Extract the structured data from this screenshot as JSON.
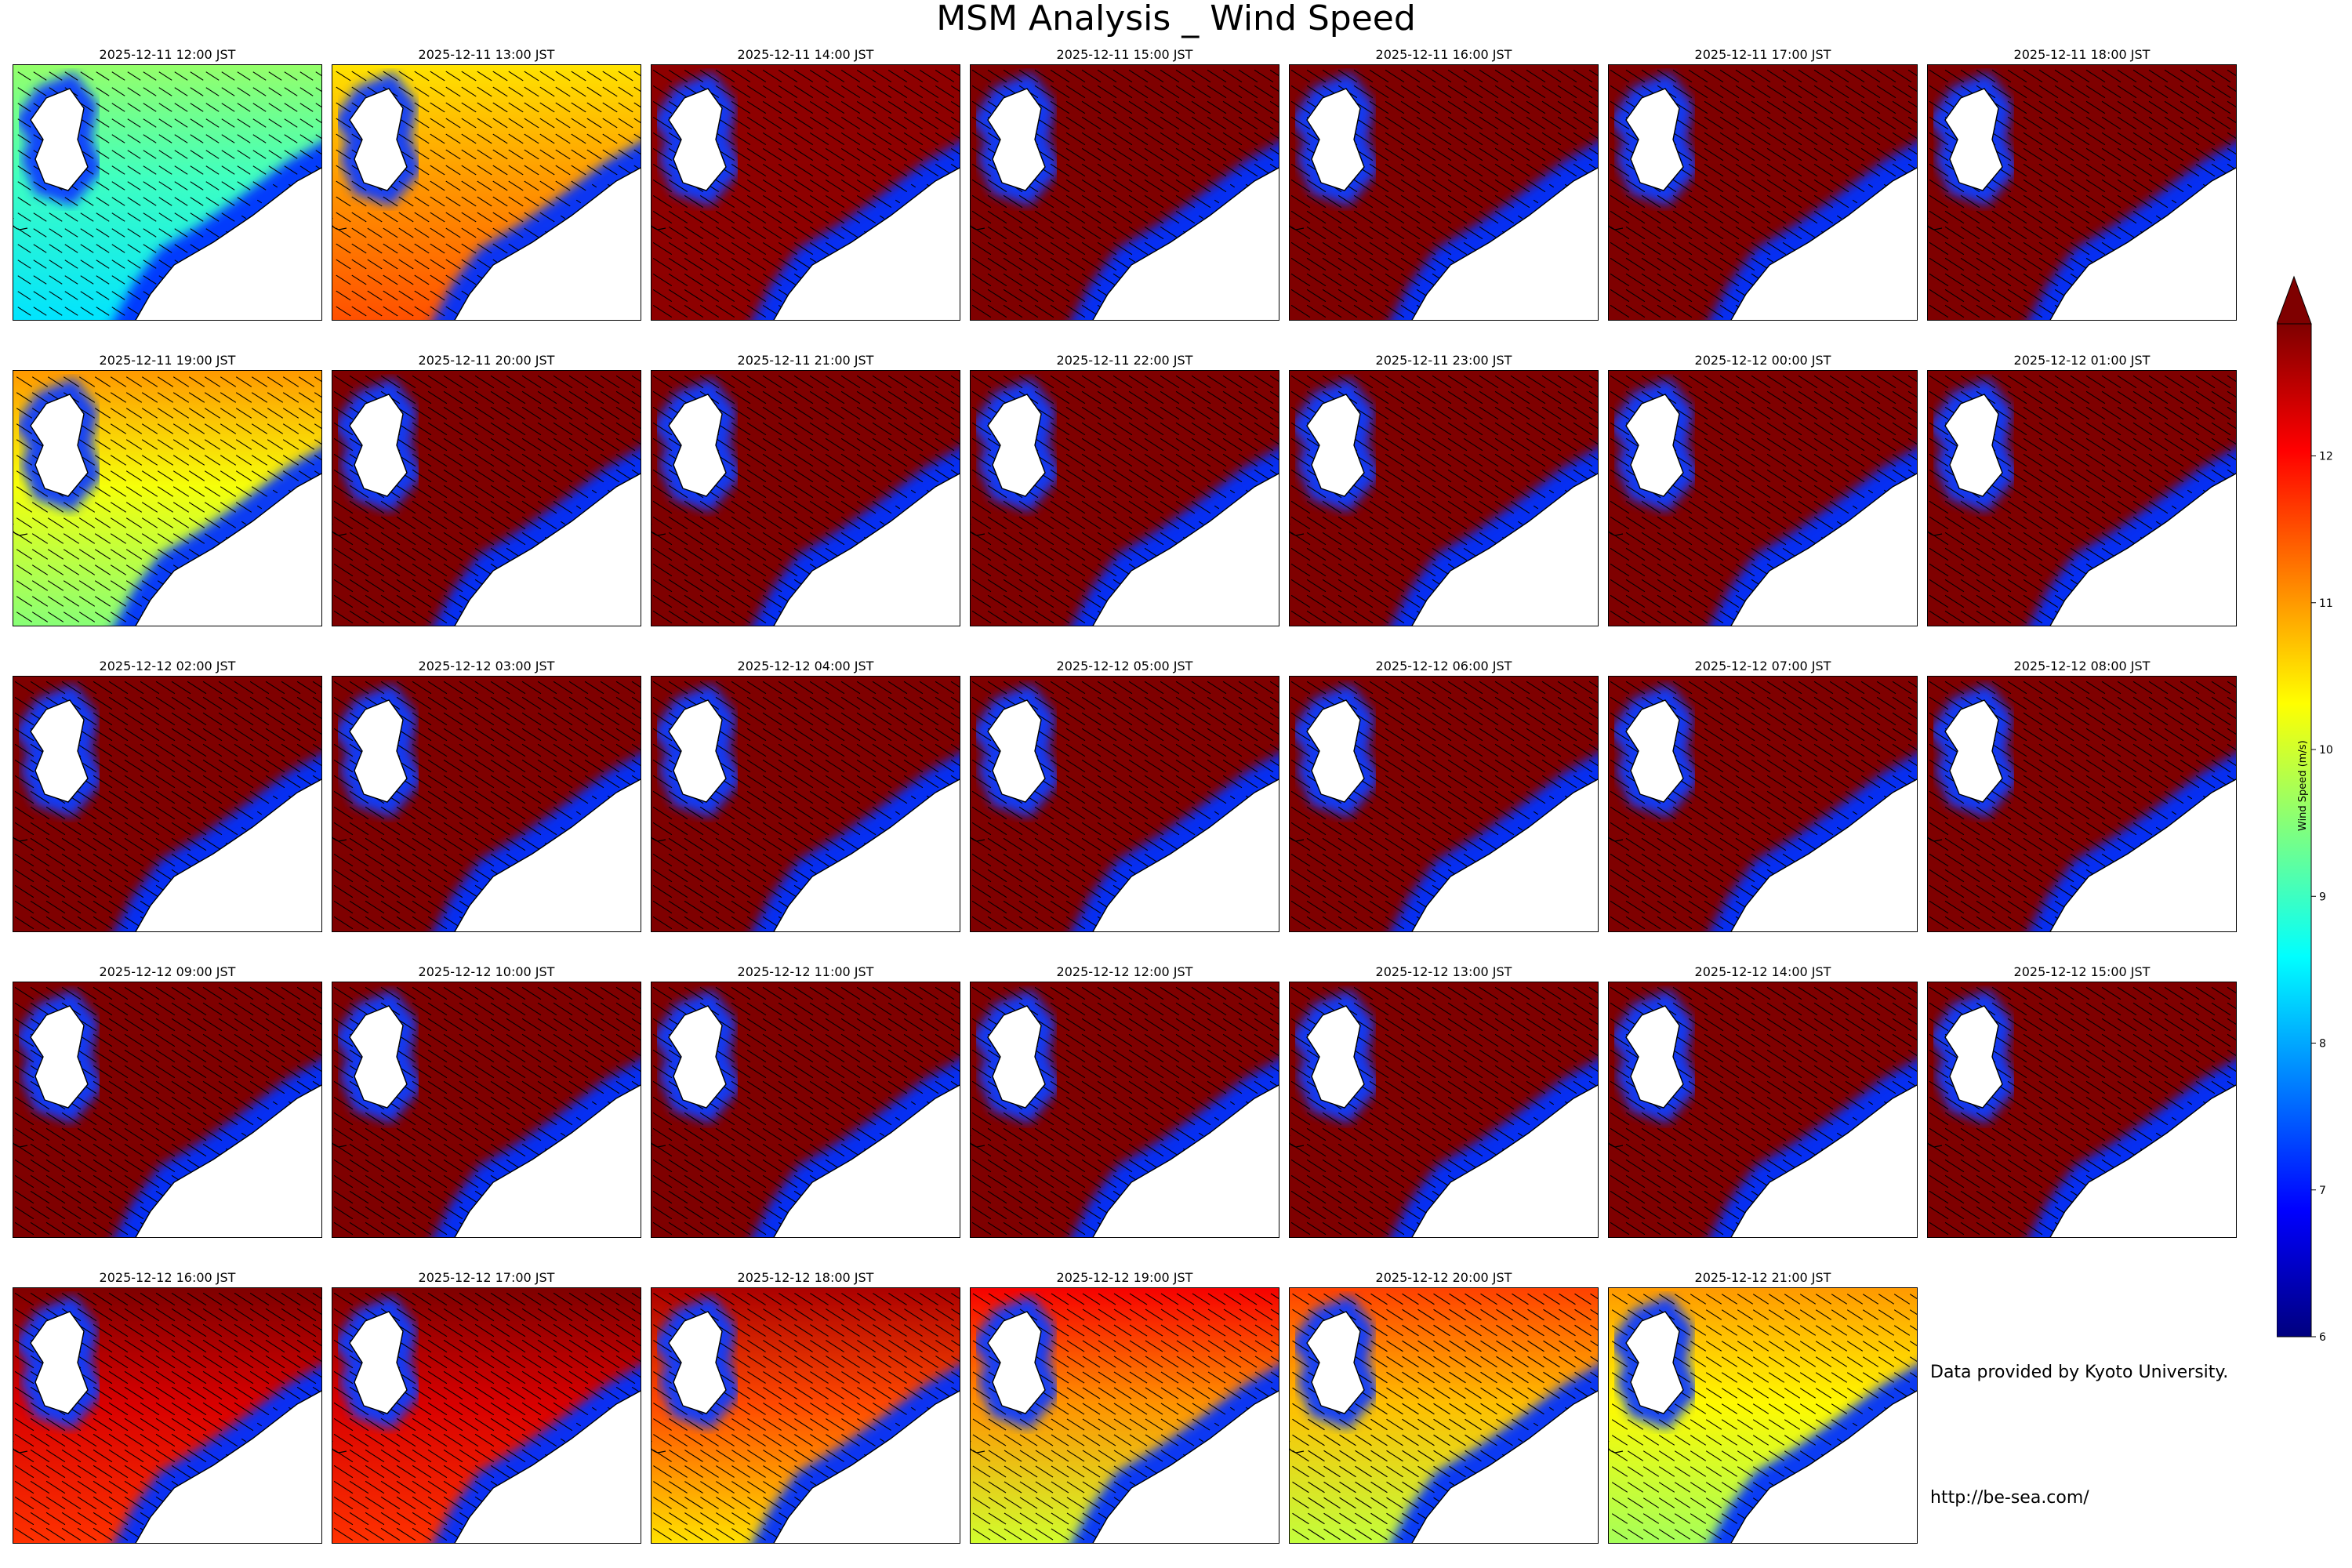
{
  "title": "MSM Analysis _ Wind Speed",
  "credits": {
    "provider": "Data provided by Kyoto University.",
    "url": "http://be-sea.com/"
  },
  "colorbar": {
    "label": "Wind Speed (m/s)",
    "min": 6,
    "max": 12.9,
    "extend": "max",
    "ticks": [
      "6",
      "7",
      "8",
      "9",
      "10",
      "11",
      "12"
    ],
    "colormap": "jet",
    "colors": [
      "#00007f",
      "#0000ff",
      "#007fff",
      "#00ffff",
      "#7fff7f",
      "#ffff00",
      "#ff7f00",
      "#ff0000",
      "#7f0000"
    ]
  },
  "chart_data": {
    "type": "heatmap",
    "description_units": "m/s",
    "panels": [
      {
        "time": "2025-12-11 12:00 JST",
        "open_sea_speed": 9.6,
        "sw_speed": 8.4
      },
      {
        "time": "2025-12-11 13:00 JST",
        "open_sea_speed": 10.5,
        "sw_speed": 11.5
      },
      {
        "time": "2025-12-11 14:00 JST",
        "open_sea_speed": 12.8,
        "sw_speed": 12.8
      },
      {
        "time": "2025-12-11 15:00 JST",
        "open_sea_speed": 12.9,
        "sw_speed": 12.9
      },
      {
        "time": "2025-12-11 16:00 JST",
        "open_sea_speed": 12.9,
        "sw_speed": 12.9
      },
      {
        "time": "2025-12-11 17:00 JST",
        "open_sea_speed": 12.9,
        "sw_speed": 12.9
      },
      {
        "time": "2025-12-11 18:00 JST",
        "open_sea_speed": 12.9,
        "sw_speed": 12.9
      },
      {
        "time": "2025-12-11 19:00 JST",
        "open_sea_speed": 11.0,
        "sw_speed": 9.5
      },
      {
        "time": "2025-12-11 20:00 JST",
        "open_sea_speed": 12.9,
        "sw_speed": 12.9
      },
      {
        "time": "2025-12-11 21:00 JST",
        "open_sea_speed": 12.9,
        "sw_speed": 12.9
      },
      {
        "time": "2025-12-11 22:00 JST",
        "open_sea_speed": 12.9,
        "sw_speed": 12.9
      },
      {
        "time": "2025-12-11 23:00 JST",
        "open_sea_speed": 12.9,
        "sw_speed": 12.9
      },
      {
        "time": "2025-12-12 00:00 JST",
        "open_sea_speed": 12.9,
        "sw_speed": 12.9
      },
      {
        "time": "2025-12-12 01:00 JST",
        "open_sea_speed": 12.9,
        "sw_speed": 12.9
      },
      {
        "time": "2025-12-12 02:00 JST",
        "open_sea_speed": 12.9,
        "sw_speed": 12.9
      },
      {
        "time": "2025-12-12 03:00 JST",
        "open_sea_speed": 12.9,
        "sw_speed": 12.9
      },
      {
        "time": "2025-12-12 04:00 JST",
        "open_sea_speed": 12.9,
        "sw_speed": 12.9
      },
      {
        "time": "2025-12-12 05:00 JST",
        "open_sea_speed": 12.9,
        "sw_speed": 12.9
      },
      {
        "time": "2025-12-12 06:00 JST",
        "open_sea_speed": 12.9,
        "sw_speed": 12.9
      },
      {
        "time": "2025-12-12 07:00 JST",
        "open_sea_speed": 12.9,
        "sw_speed": 12.9
      },
      {
        "time": "2025-12-12 08:00 JST",
        "open_sea_speed": 12.9,
        "sw_speed": 12.9
      },
      {
        "time": "2025-12-12 09:00 JST",
        "open_sea_speed": 12.9,
        "sw_speed": 12.9
      },
      {
        "time": "2025-12-12 10:00 JST",
        "open_sea_speed": 12.9,
        "sw_speed": 12.9
      },
      {
        "time": "2025-12-12 11:00 JST",
        "open_sea_speed": 12.9,
        "sw_speed": 12.9
      },
      {
        "time": "2025-12-12 12:00 JST",
        "open_sea_speed": 12.9,
        "sw_speed": 12.9
      },
      {
        "time": "2025-12-12 13:00 JST",
        "open_sea_speed": 12.9,
        "sw_speed": 12.9
      },
      {
        "time": "2025-12-12 14:00 JST",
        "open_sea_speed": 12.9,
        "sw_speed": 12.9
      },
      {
        "time": "2025-12-12 15:00 JST",
        "open_sea_speed": 12.9,
        "sw_speed": 12.9
      },
      {
        "time": "2025-12-12 16:00 JST",
        "open_sea_speed": 12.9,
        "sw_speed": 11.7
      },
      {
        "time": "2025-12-12 17:00 JST",
        "open_sea_speed": 12.9,
        "sw_speed": 11.7
      },
      {
        "time": "2025-12-12 18:00 JST",
        "open_sea_speed": 12.6,
        "sw_speed": 10.5
      },
      {
        "time": "2025-12-12 19:00 JST",
        "open_sea_speed": 12.1,
        "sw_speed": 10.0
      },
      {
        "time": "2025-12-12 20:00 JST",
        "open_sea_speed": 11.6,
        "sw_speed": 9.9
      },
      {
        "time": "2025-12-12 21:00 JST",
        "open_sea_speed": 11.0,
        "sw_speed": 9.7
      }
    ]
  }
}
